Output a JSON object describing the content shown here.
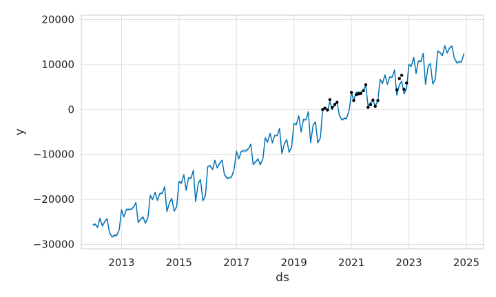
{
  "chart_data": {
    "type": "line",
    "title": "",
    "xlabel": "ds",
    "ylabel": "y",
    "xlim": [
      2011.6,
      2025.6
    ],
    "ylim": [
      -31000,
      21000
    ],
    "x_ticks": [
      2013,
      2015,
      2017,
      2019,
      2021,
      2023,
      2025
    ],
    "x_tick_labels": [
      "2013",
      "2015",
      "2017",
      "2019",
      "2021",
      "2023",
      "2025"
    ],
    "y_ticks": [
      -30000,
      -20000,
      -10000,
      0,
      10000,
      20000
    ],
    "y_tick_labels": [
      "−30000",
      "−20000",
      "−10000",
      "0",
      "10000",
      "20000"
    ],
    "grid": true,
    "colors": {
      "forecast_line": "#0072B2",
      "interval_band": "#0072B2",
      "observed_points": "#000000",
      "grid": "#dddddd",
      "frame": "#cccccc"
    },
    "series": [
      {
        "kind": "forecast",
        "x": [
          2012.0,
          2012.08,
          2012.17,
          2012.25,
          2012.33,
          2012.42,
          2012.5,
          2012.58,
          2012.67,
          2012.75,
          2012.83,
          2012.92,
          2013.0,
          2013.08,
          2013.17,
          2013.25,
          2013.33,
          2013.42,
          2013.5,
          2013.58,
          2013.67,
          2013.75,
          2013.83,
          2013.92,
          2014.0,
          2014.08,
          2014.17,
          2014.25,
          2014.33,
          2014.42,
          2014.5,
          2014.58,
          2014.67,
          2014.75,
          2014.83,
          2014.92,
          2015.0,
          2015.08,
          2015.17,
          2015.25,
          2015.33,
          2015.42,
          2015.5,
          2015.58,
          2015.67,
          2015.75,
          2015.83,
          2015.92,
          2016.0,
          2016.08,
          2016.17,
          2016.25,
          2016.33,
          2016.42,
          2016.5,
          2016.58,
          2016.67,
          2016.75,
          2016.83,
          2016.92,
          2017.0,
          2017.08,
          2017.17,
          2017.25,
          2017.33,
          2017.42,
          2017.5,
          2017.58,
          2017.67,
          2017.75,
          2017.83,
          2017.92,
          2018.0,
          2018.08,
          2018.17,
          2018.25,
          2018.33,
          2018.42,
          2018.5,
          2018.58,
          2018.67,
          2018.75,
          2018.83,
          2018.92,
          2019.0,
          2019.08,
          2019.17,
          2019.25,
          2019.33,
          2019.42,
          2019.5,
          2019.58,
          2019.67,
          2019.75,
          2019.83,
          2019.92,
          2020.0,
          2020.08,
          2020.17,
          2020.25,
          2020.33,
          2020.42,
          2020.5,
          2020.58,
          2020.67,
          2020.75,
          2020.83,
          2020.92,
          2021.0,
          2021.08,
          2021.17,
          2021.25,
          2021.33,
          2021.42,
          2021.5,
          2021.58,
          2021.67,
          2021.75,
          2021.83,
          2021.92,
          2022.0,
          2022.08,
          2022.17,
          2022.25,
          2022.33,
          2022.42,
          2022.5,
          2022.58,
          2022.67,
          2022.75,
          2022.83,
          2022.92,
          2023.0,
          2023.08,
          2023.17,
          2023.25,
          2023.33,
          2023.42,
          2023.5,
          2023.58,
          2023.67,
          2023.75,
          2023.83,
          2023.92,
          2024.0,
          2024.08,
          2024.17,
          2024.25,
          2024.33,
          2024.42,
          2024.5,
          2024.58,
          2024.67,
          2024.75,
          2024.83,
          2024.92
        ],
        "y": [
          -25700,
          -25500,
          -26200,
          -24200,
          -25900,
          -24900,
          -24300,
          -27400,
          -28300,
          -28000,
          -28000,
          -26700,
          -22300,
          -23900,
          -22200,
          -22200,
          -22200,
          -21700,
          -20700,
          -25100,
          -24400,
          -23900,
          -25300,
          -24000,
          -19100,
          -20000,
          -18400,
          -20200,
          -18700,
          -18600,
          -17200,
          -22700,
          -20700,
          -19800,
          -22600,
          -21600,
          -16000,
          -16400,
          -14500,
          -18000,
          -15200,
          -15300,
          -13500,
          -20500,
          -16400,
          -15600,
          -20300,
          -19200,
          -12700,
          -12500,
          -13300,
          -11300,
          -13000,
          -11900,
          -11300,
          -14400,
          -15300,
          -15200,
          -15000,
          -13200,
          -9300,
          -11000,
          -9300,
          -9200,
          -9200,
          -8700,
          -7700,
          -12200,
          -11600,
          -11000,
          -12300,
          -11000,
          -6300,
          -7300,
          -5300,
          -7400,
          -5800,
          -5800,
          -4200,
          -9800,
          -7600,
          -6700,
          -9500,
          -8400,
          -3100,
          -3400,
          -1400,
          -5000,
          -2200,
          -2300,
          -500,
          -7400,
          -3400,
          -2800,
          -7400,
          -6300,
          0,
          300,
          -400,
          1800,
          0,
          1100,
          1700,
          -1300,
          -2300,
          -2000,
          -2000,
          -200,
          3800,
          2100,
          3800,
          3800,
          3800,
          4300,
          5300,
          800,
          1500,
          2100,
          700,
          2000,
          6700,
          5800,
          7700,
          5600,
          7200,
          7200,
          8800,
          3200,
          5500,
          6300,
          3500,
          4600,
          10000,
          9600,
          11600,
          8000,
          10800,
          10700,
          12500,
          5600,
          9600,
          10200,
          5700,
          6700,
          13000,
          12700,
          12000,
          14200,
          12600,
          13700,
          14100,
          11400,
          10400,
          10600,
          10600,
          12500
        ]
      },
      {
        "kind": "observed",
        "x": [
          2020.0,
          2020.08,
          2020.17,
          2020.25,
          2020.33,
          2020.42,
          2020.5,
          2021.0,
          2021.08,
          2021.17,
          2021.25,
          2021.33,
          2021.42,
          2021.5,
          2021.58,
          2021.67,
          2021.75,
          2021.83,
          2021.92,
          2022.58,
          2022.67,
          2022.75,
          2022.83,
          2022.92
        ],
        "y": [
          0,
          300,
          -100,
          2200,
          500,
          1100,
          1600,
          3800,
          2000,
          3300,
          3500,
          3600,
          4200,
          5500,
          500,
          1100,
          2100,
          700,
          2000,
          4400,
          6900,
          7600,
          4500,
          5900
        ]
      }
    ]
  }
}
